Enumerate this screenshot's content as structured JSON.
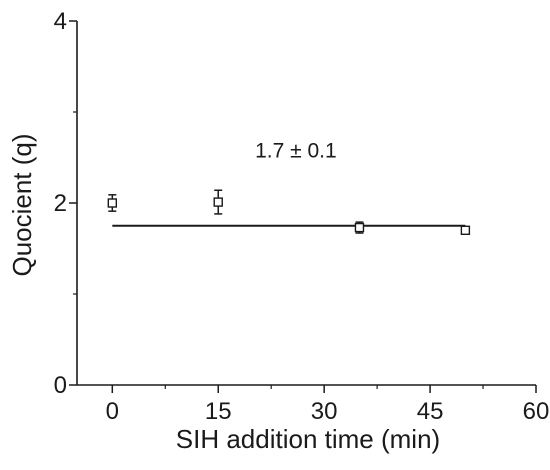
{
  "chart_data": {
    "type": "scatter",
    "title": "",
    "xlabel": "SIH addition time (min)",
    "ylabel": "Quocient (q)",
    "xlim": [
      -5,
      60
    ],
    "ylim": [
      0,
      4
    ],
    "x_ticks": [
      0,
      15,
      30,
      45,
      60
    ],
    "y_ticks": [
      0,
      2,
      4
    ],
    "grid": false,
    "legend": "none",
    "series": [
      {
        "marker": "open-square",
        "points": [
          {
            "x": 0,
            "y": 2.0,
            "err": 0.09
          },
          {
            "x": 15,
            "y": 2.01,
            "err": 0.13
          },
          {
            "x": 35,
            "y": 1.73,
            "err": 0.06
          },
          {
            "x": 50,
            "y": 1.7,
            "err": 0.03
          }
        ]
      }
    ],
    "fit_line": {
      "x": [
        0,
        50
      ],
      "y": [
        1.75,
        1.75
      ]
    },
    "annotations": [
      {
        "text": "1.7 ± 0.1",
        "x": 26,
        "y": 2.5
      }
    ],
    "colors": {
      "axis": "#1a1a1a",
      "marker": "#1a1a1a",
      "fit_line": "#1a1a1a"
    }
  }
}
